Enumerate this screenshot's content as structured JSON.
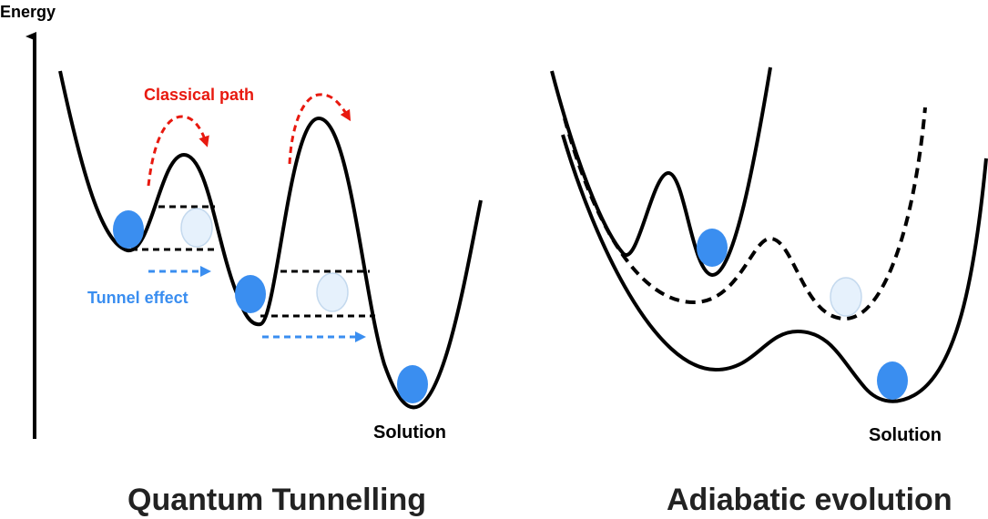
{
  "axis": {
    "label": "Energy"
  },
  "left_panel": {
    "title": "Quantum Tunnelling",
    "classical_label": "Classical path",
    "tunnel_label": "Tunnel effect",
    "solution_label": "Solution"
  },
  "right_panel": {
    "title": "Adiabatic evolution",
    "solution_label": "Solution"
  },
  "colors": {
    "curve": "#000000",
    "ball": "#3a8ef0",
    "ghost_ball": "#e6f1fc",
    "ghost_outline": "#c4d9ee",
    "classical_arrow": "#e8190f",
    "tunnel_arrow": "#3a8ef0"
  }
}
